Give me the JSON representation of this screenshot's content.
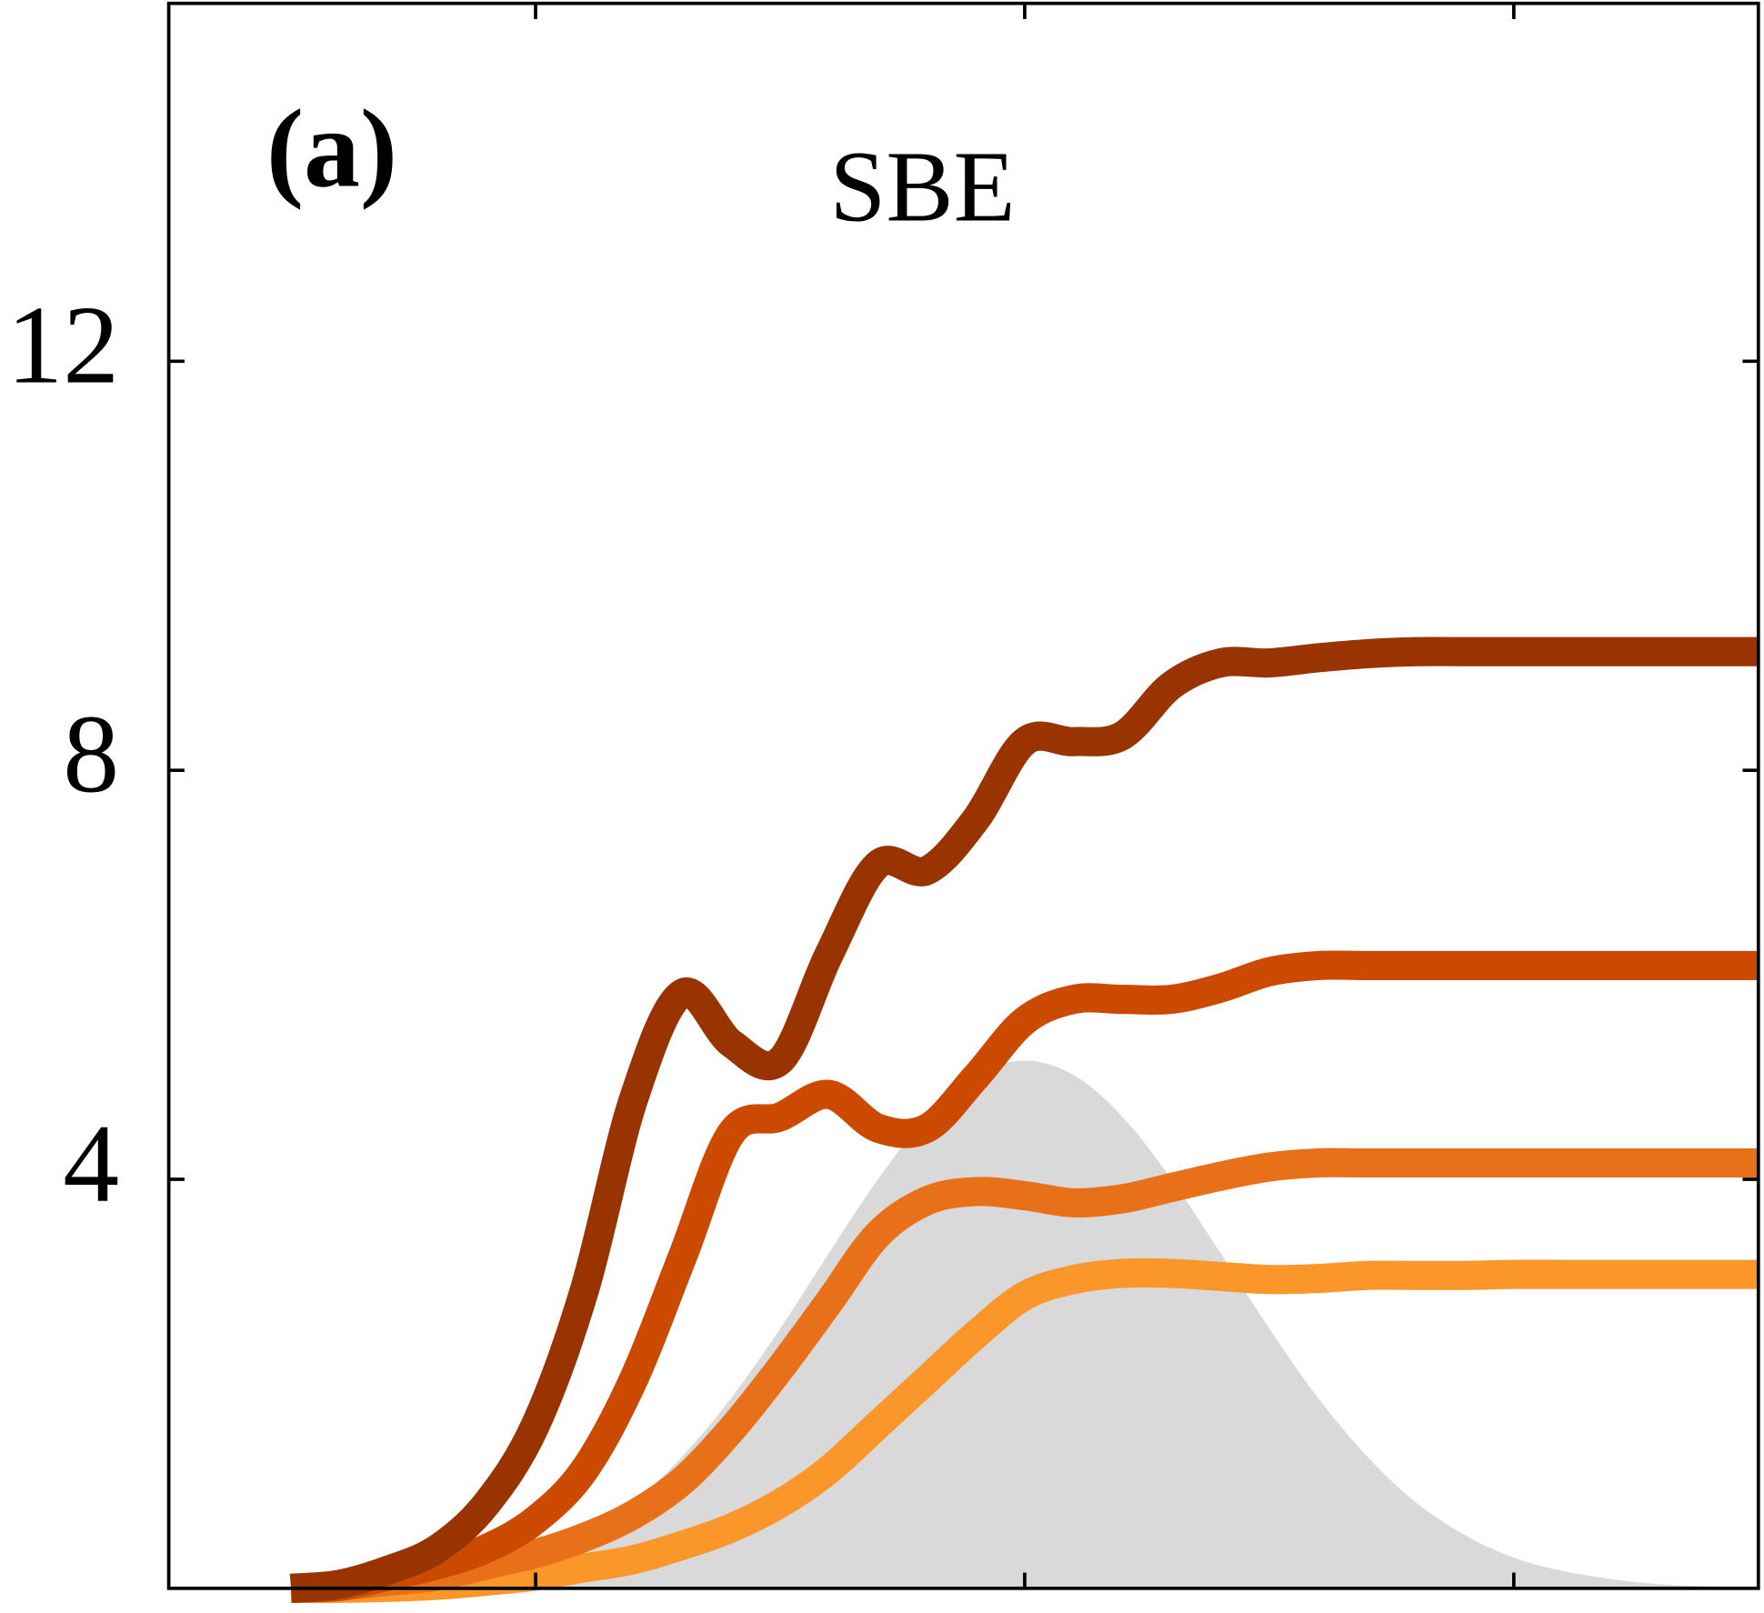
{
  "chart_data": {
    "type": "line",
    "annotations": [
      "(a)",
      "SBE"
    ],
    "x": [
      -1.5,
      -1.4,
      -1.3,
      -1.2,
      -1.1,
      -1.0,
      -0.9,
      -0.8,
      -0.7,
      -0.6,
      -0.5,
      -0.4,
      -0.3,
      -0.2,
      -0.1,
      0,
      0.1,
      0.2,
      0.3,
      0.4,
      0.5,
      0.6,
      0.7,
      0.8,
      0.9,
      1.0,
      1.1,
      1.2,
      1.3,
      1.4,
      1.5
    ],
    "series": [
      {
        "color": "#d9d9d9",
        "style": "area",
        "values": [
          0.01,
          0.02,
          0.04,
          0.09,
          0.17,
          0.3,
          0.52,
          0.84,
          1.29,
          1.86,
          2.54,
          3.28,
          4.0,
          4.61,
          5.02,
          5.16,
          5.02,
          4.61,
          4.0,
          3.28,
          2.54,
          1.86,
          1.29,
          0.84,
          0.52,
          0.3,
          0.17,
          0.09,
          0.04,
          0.02,
          0.01
        ]
      },
      {
        "color": "#fa962a",
        "values": [
          0,
          0,
          0.01,
          0.03,
          0.07,
          0.12,
          0.2,
          0.28,
          0.42,
          0.59,
          0.83,
          1.16,
          1.6,
          2.04,
          2.48,
          2.86,
          3.02,
          3.08,
          3.08,
          3.05,
          3.02,
          3.03,
          3.06,
          3.06,
          3.06,
          3.07,
          3.07,
          3.07,
          3.07,
          3.07,
          3.07
        ]
      },
      {
        "color": "#e87018",
        "values": [
          0,
          0.02,
          0.07,
          0.12,
          0.23,
          0.34,
          0.5,
          0.72,
          1.05,
          1.55,
          2.15,
          2.8,
          3.46,
          3.79,
          3.88,
          3.84,
          3.77,
          3.81,
          3.92,
          4.03,
          4.12,
          4.16,
          4.16,
          4.16,
          4.16,
          4.16,
          4.16,
          4.16,
          4.16,
          4.16,
          4.16
        ]
      },
      {
        "color": "#cc4a00",
        "values": [
          0,
          0.02,
          0.12,
          0.23,
          0.39,
          0.67,
          1.16,
          2.04,
          3.24,
          4.45,
          4.61,
          4.83,
          4.5,
          4.5,
          5.0,
          5.55,
          5.76,
          5.76,
          5.76,
          5.87,
          6.03,
          6.09,
          6.09,
          6.09,
          6.09,
          6.09,
          6.09,
          6.09,
          6.09,
          6.09,
          6.09
        ]
      },
      {
        "color": "#993300",
        "values": [
          0,
          0.04,
          0.18,
          0.39,
          0.83,
          1.6,
          2.92,
          4.78,
          5.82,
          5.33,
          5.16,
          6.2,
          7.08,
          7.02,
          7.52,
          8.28,
          8.28,
          8.34,
          8.83,
          9.05,
          9.05,
          9.1,
          9.14,
          9.16,
          9.16,
          9.16,
          9.16,
          9.16,
          9.16,
          9.16,
          9.16
        ]
      }
    ],
    "xlim": [
      -1.75,
      1.5
    ],
    "xticks": [
      -1,
      0,
      1
    ],
    "ylim": [
      0,
      15.5
    ],
    "yticks": [
      4,
      8,
      12
    ]
  }
}
